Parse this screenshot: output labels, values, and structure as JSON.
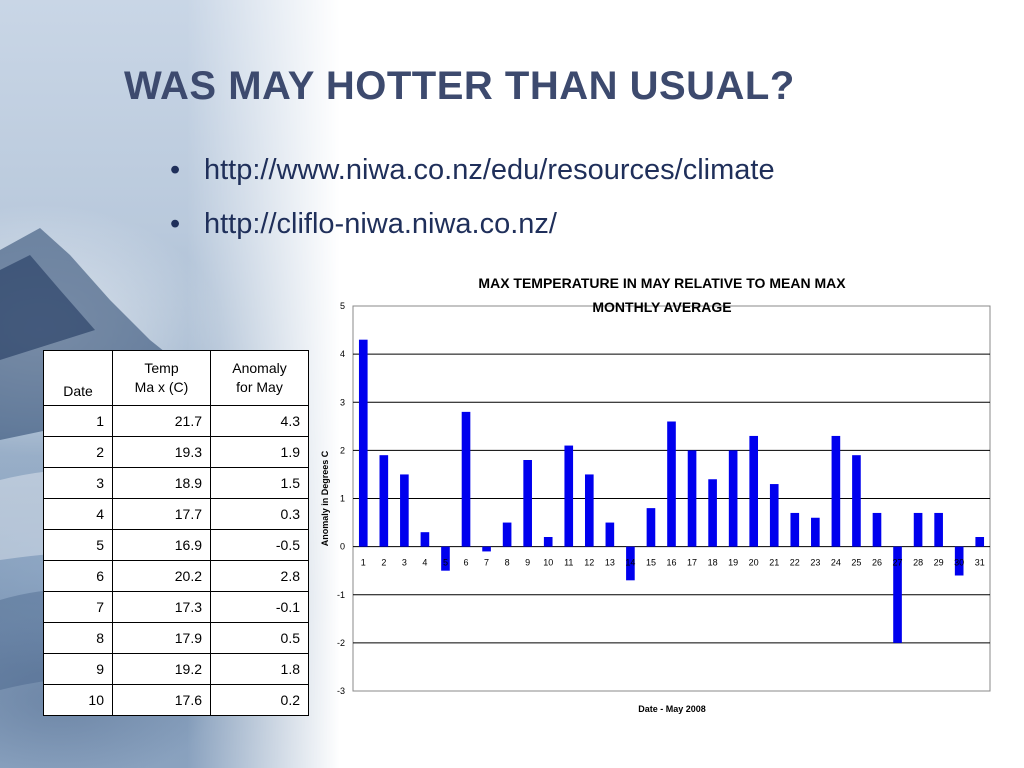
{
  "slide": {
    "title": "WAS MAY HOTTER THAN USUAL?",
    "bullets": [
      {
        "text": "http://www.niwa.co.nz/edu/resources/climate"
      },
      {
        "text": "http://cliflo-niwa.niwa.co.nz/"
      }
    ]
  },
  "table": {
    "headers": [
      "Date",
      "Temp\nMa x (C)",
      "Anomaly\nfor May"
    ],
    "rows": [
      [
        "1",
        "21.7",
        "4.3"
      ],
      [
        "2",
        "19.3",
        "1.9"
      ],
      [
        "3",
        "18.9",
        "1.5"
      ],
      [
        "4",
        "17.7",
        "0.3"
      ],
      [
        "5",
        "16.9",
        "-0.5"
      ],
      [
        "6",
        "20.2",
        "2.8"
      ],
      [
        "7",
        "17.3",
        "-0.1"
      ],
      [
        "8",
        "17.9",
        "0.5"
      ],
      [
        "9",
        "19.2",
        "1.8"
      ],
      [
        "10",
        "17.6",
        "0.2"
      ]
    ]
  },
  "chart_data": {
    "type": "bar",
    "title": "MAX TEMPERATURE IN MAY RELATIVE TO MEAN MAX MONTHLY AVERAGE",
    "xlabel": "Date - May 2008",
    "ylabel": "Anomaly in Degrees C",
    "categories": [
      "1",
      "2",
      "3",
      "4",
      "5",
      "6",
      "7",
      "8",
      "9",
      "10",
      "11",
      "12",
      "13",
      "14",
      "15",
      "16",
      "17",
      "18",
      "19",
      "20",
      "21",
      "22",
      "23",
      "24",
      "25",
      "26",
      "27",
      "28",
      "29",
      "30",
      "31"
    ],
    "values": [
      4.3,
      1.9,
      1.5,
      0.3,
      -0.5,
      2.8,
      -0.1,
      0.5,
      1.8,
      0.2,
      2.1,
      1.5,
      0.5,
      -0.7,
      0.8,
      2.6,
      2.0,
      1.4,
      2.0,
      2.3,
      1.3,
      0.7,
      0.6,
      2.3,
      1.9,
      0.7,
      -2.0,
      0.7,
      0.7,
      -0.6,
      0.2
    ],
    "ylim": [
      -3,
      5
    ],
    "yticks": [
      -3,
      -2,
      -1,
      0,
      1,
      2,
      3,
      4,
      5
    ],
    "grid": true,
    "bar_color": "#0000ee"
  }
}
